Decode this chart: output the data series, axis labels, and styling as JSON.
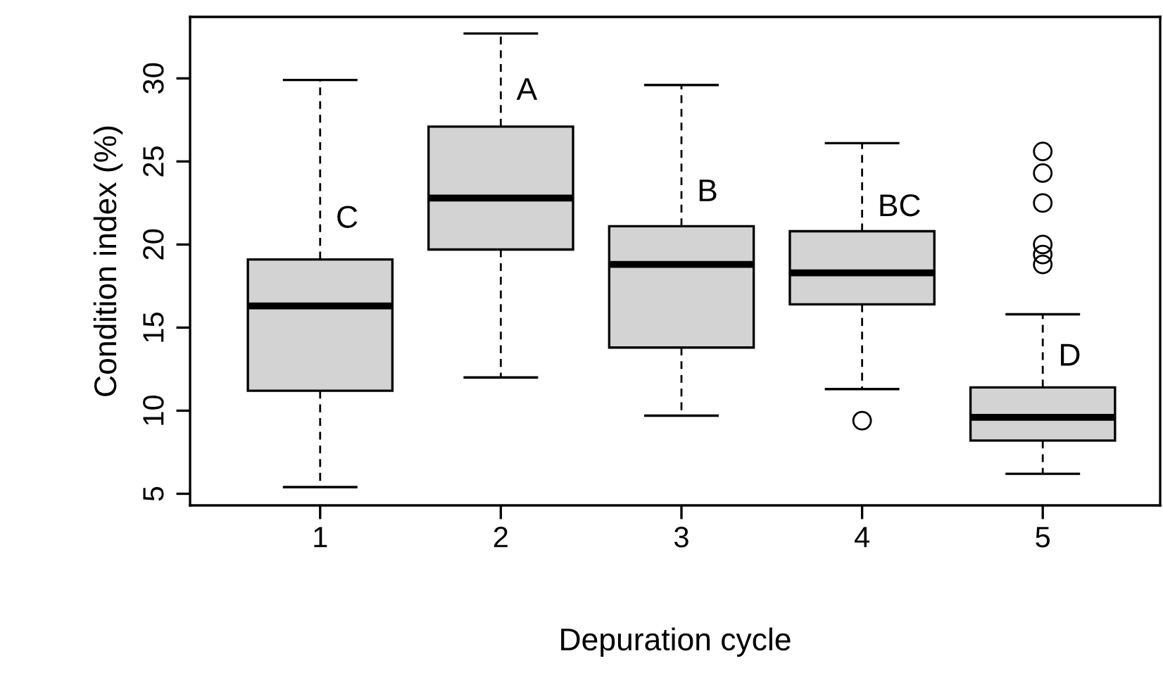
{
  "chart_data": {
    "type": "box",
    "xlabel": "Depuration cycle",
    "ylabel": "Condition index (%)",
    "categories": [
      "1",
      "2",
      "3",
      "4",
      "5"
    ],
    "boxes": [
      {
        "low": 5.4,
        "q1": 11.2,
        "median": 16.3,
        "q3": 19.1,
        "high": 29.9
      },
      {
        "low": 12.0,
        "q1": 19.7,
        "median": 22.8,
        "q3": 27.1,
        "high": 32.7
      },
      {
        "low": 9.7,
        "q1": 13.8,
        "median": 18.8,
        "q3": 21.1,
        "high": 29.6
      },
      {
        "low": 11.3,
        "q1": 16.4,
        "median": 18.3,
        "q3": 20.8,
        "high": 26.1,
        "outliers": [
          9.4
        ]
      },
      {
        "low": 6.2,
        "q1": 8.2,
        "median": 9.6,
        "q3": 11.4,
        "high": 15.8,
        "outliers": [
          25.6,
          24.3,
          22.5,
          20.0,
          19.4,
          18.8
        ]
      }
    ],
    "color": "#d3d3d3",
    "ylim": [
      4.3,
      33.7
    ],
    "yticks": [
      5,
      10,
      15,
      20,
      25,
      30
    ],
    "grid": false,
    "annotations": [
      {
        "text": "C",
        "x": "1",
        "y": 21.5
      },
      {
        "text": "A",
        "x": "2",
        "y": 29.2
      },
      {
        "text": "B",
        "x": "3",
        "y": 23.1
      },
      {
        "text": "BC",
        "x": "4",
        "y": 22.2
      },
      {
        "text": "D",
        "x": "5",
        "y": 13.2
      }
    ]
  }
}
